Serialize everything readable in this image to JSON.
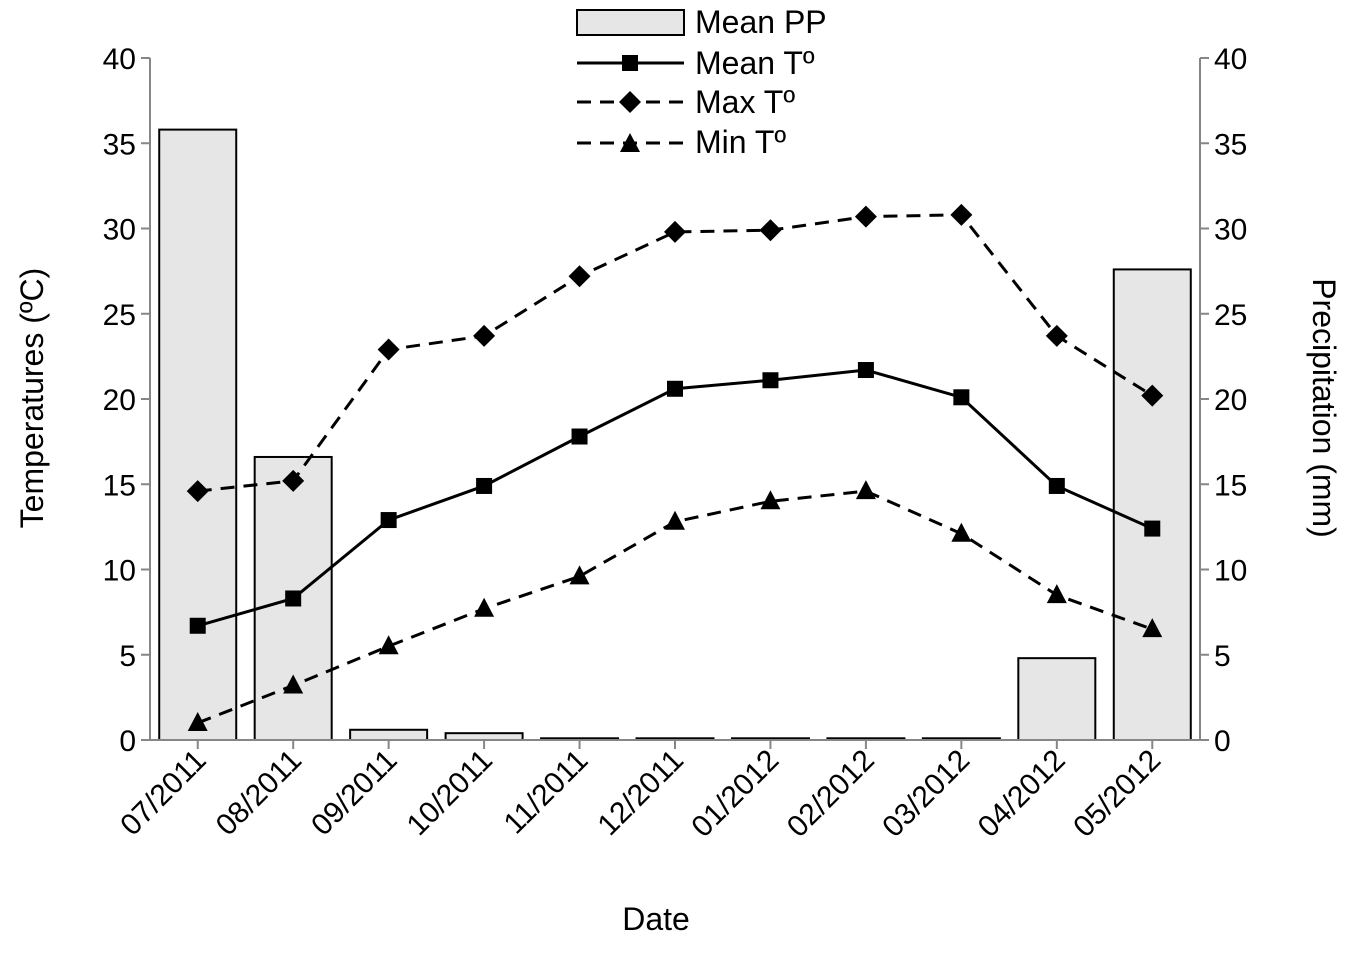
{
  "chart_data": {
    "type": "bar",
    "categories": [
      "07/2011",
      "08/2011",
      "09/2011",
      "10/2011",
      "11/2011",
      "12/2011",
      "01/2012",
      "02/2012",
      "03/2012",
      "04/2012",
      "05/2012"
    ],
    "xlabel": "Date",
    "ylabel": "Temperatures (ºC)",
    "y2label": "Precipitation (mm)",
    "ylim": [
      0,
      40
    ],
    "y2lim": [
      0,
      40
    ],
    "yticks": [
      "0",
      "5",
      "10",
      "15",
      "20",
      "25",
      "30",
      "35",
      "40"
    ],
    "y2ticks": [
      "0",
      "5",
      "10",
      "15",
      "20",
      "25",
      "30",
      "35",
      "40"
    ],
    "grid": false,
    "legend_position": "top-center",
    "series": [
      {
        "name": "Mean PP",
        "type": "bar",
        "axis": "right",
        "values": [
          35.8,
          16.6,
          0.6,
          0.4,
          0.1,
          0.1,
          0.1,
          0.1,
          0.1,
          4.8,
          27.6
        ],
        "fill": "#e6e6e6",
        "stroke": "#000000"
      },
      {
        "name": "Mean Tº",
        "type": "line",
        "axis": "left",
        "marker": "square",
        "dash": "solid",
        "values": [
          6.7,
          8.3,
          12.9,
          14.9,
          17.8,
          20.6,
          21.1,
          21.7,
          20.1,
          14.9,
          12.4
        ],
        "color": "#000000"
      },
      {
        "name": "Max Tº",
        "type": "line",
        "axis": "left",
        "marker": "diamond",
        "dash": "dashed",
        "values": [
          14.6,
          15.2,
          22.9,
          23.7,
          27.2,
          29.8,
          29.9,
          30.7,
          30.8,
          23.7,
          20.2
        ],
        "color": "#000000"
      },
      {
        "name": "Min Tº",
        "type": "line",
        "axis": "left",
        "marker": "triangle",
        "dash": "dashed",
        "values": [
          1.0,
          3.2,
          5.5,
          7.7,
          9.6,
          12.8,
          14.0,
          14.6,
          12.1,
          8.5,
          6.5
        ],
        "color": "#000000"
      }
    ]
  }
}
